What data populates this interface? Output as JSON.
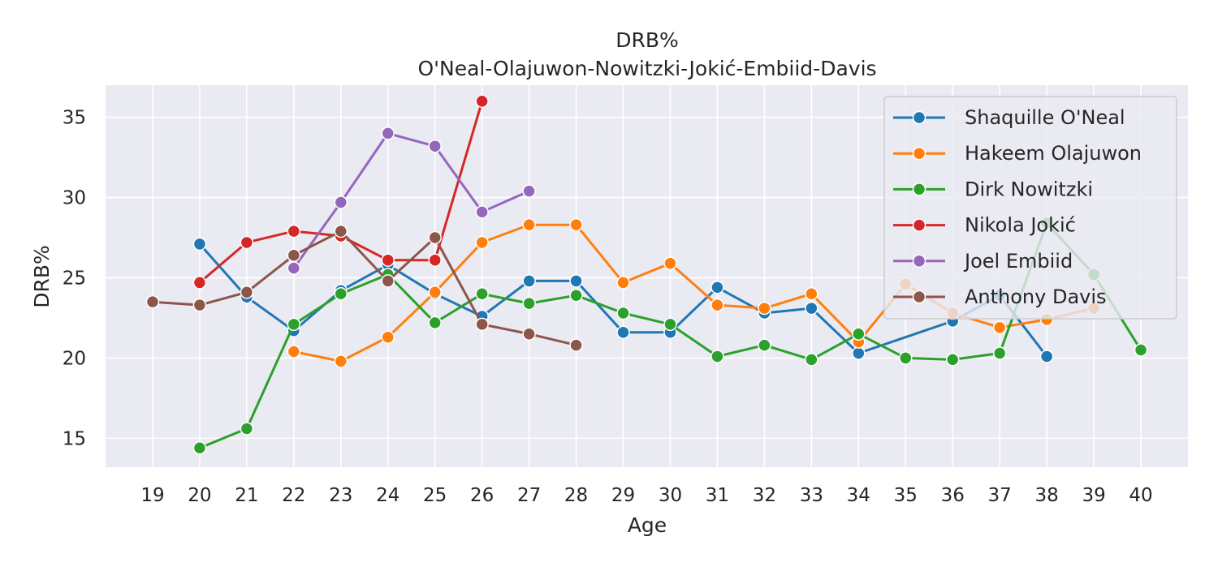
{
  "chart_data": {
    "type": "line",
    "title": "DRB%",
    "subtitle": "O'Neal-Olajuwon-Nowitzki-Jokić-Embiid-Davis",
    "xlabel": "Age",
    "ylabel": "DRB%",
    "x_ticks": [
      19,
      20,
      21,
      22,
      23,
      24,
      25,
      26,
      27,
      28,
      29,
      30,
      31,
      32,
      33,
      34,
      35,
      36,
      37,
      38,
      39,
      40
    ],
    "y_ticks": [
      15,
      20,
      25,
      30,
      35
    ],
    "xlim": [
      18,
      41
    ],
    "ylim": [
      13.2,
      37.0
    ],
    "grid": true,
    "legend_position": "top-right",
    "series": [
      {
        "name": "Shaquille O'Neal",
        "color": "#1f77b4",
        "x": [
          20,
          21,
          22,
          23,
          24,
          25,
          26,
          27,
          28,
          29,
          30,
          31,
          32,
          33,
          34,
          36,
          37,
          38
        ],
        "y": [
          27.1,
          23.8,
          21.7,
          24.2,
          25.8,
          24.0,
          22.6,
          24.8,
          24.8,
          21.6,
          21.6,
          24.4,
          22.8,
          23.1,
          20.3,
          22.3,
          23.9,
          20.1
        ]
      },
      {
        "name": "Hakeem Olajuwon",
        "color": "#ff7f0e",
        "x": [
          22,
          23,
          24,
          25,
          26,
          27,
          28,
          29,
          30,
          31,
          32,
          33,
          34,
          35,
          36,
          37,
          38,
          39
        ],
        "y": [
          20.4,
          19.8,
          21.3,
          24.1,
          27.2,
          28.3,
          28.3,
          24.7,
          25.9,
          23.3,
          23.1,
          24.0,
          21.0,
          24.6,
          22.8,
          21.9,
          22.4,
          23.1
        ]
      },
      {
        "name": "Dirk Nowitzki",
        "color": "#2ca02c",
        "x": [
          20,
          21,
          22,
          23,
          24,
          25,
          26,
          27,
          28,
          29,
          30,
          31,
          32,
          33,
          34,
          35,
          36,
          37,
          38,
          39,
          40
        ],
        "y": [
          14.4,
          15.6,
          22.1,
          24.0,
          25.2,
          22.2,
          24.0,
          23.4,
          23.9,
          22.8,
          22.1,
          20.1,
          20.8,
          19.9,
          21.5,
          20.0,
          19.9,
          20.3,
          28.4,
          25.2,
          20.5
        ]
      },
      {
        "name": "Nikola Jokić",
        "color": "#d62728",
        "x": [
          20,
          21,
          22,
          23,
          24,
          25,
          26
        ],
        "y": [
          24.7,
          27.2,
          27.9,
          27.6,
          26.1,
          26.1,
          36.0
        ]
      },
      {
        "name": "Joel Embiid",
        "color": "#9467bd",
        "x": [
          22,
          23,
          24,
          25,
          26,
          27
        ],
        "y": [
          25.6,
          29.7,
          34.0,
          33.2,
          29.1,
          30.4
        ]
      },
      {
        "name": "Anthony Davis",
        "color": "#8c564b",
        "x": [
          19,
          20,
          21,
          22,
          23,
          24,
          25,
          26,
          27,
          28
        ],
        "y": [
          23.5,
          23.3,
          24.1,
          26.4,
          27.9,
          24.8,
          27.5,
          22.1,
          21.5,
          20.8
        ]
      }
    ]
  }
}
